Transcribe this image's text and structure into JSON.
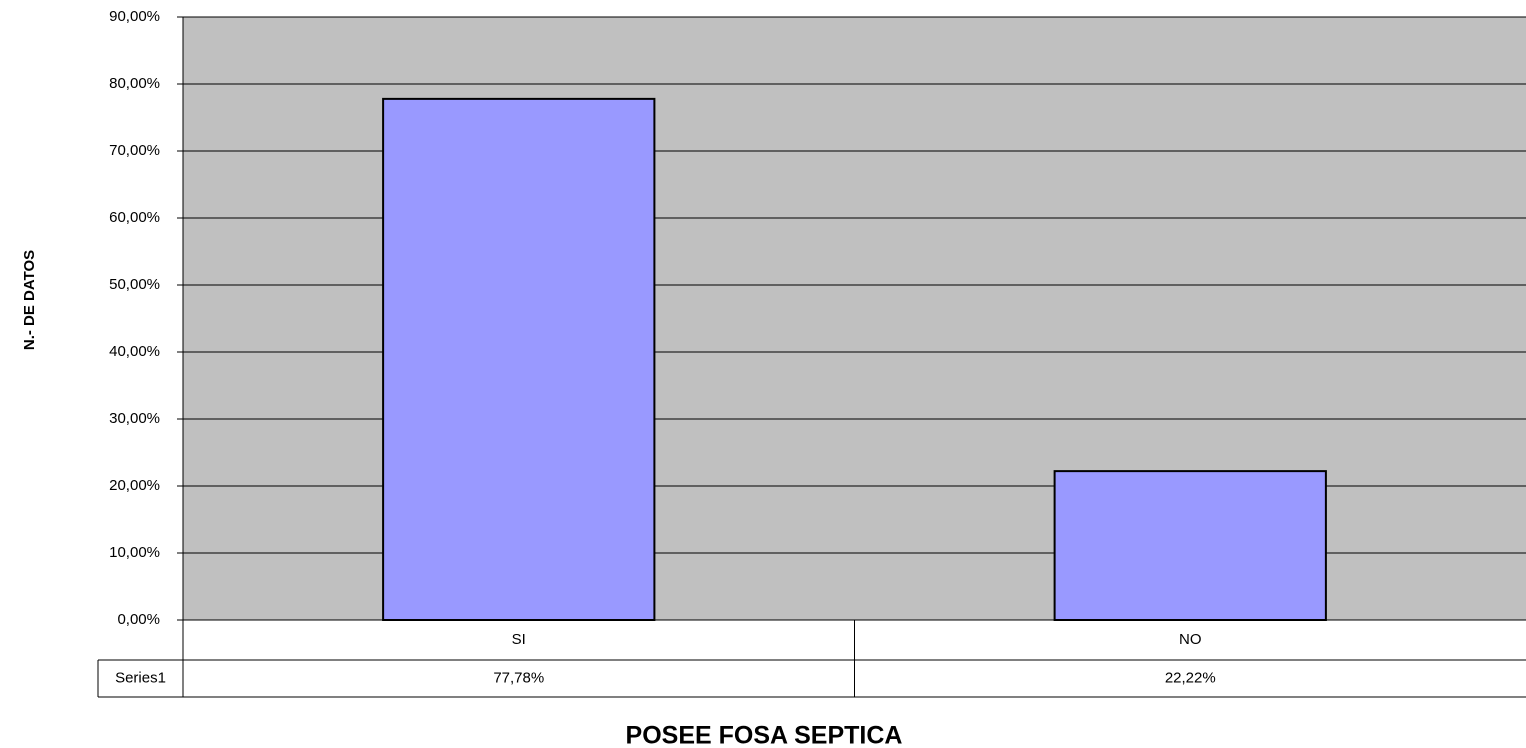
{
  "chart_data": {
    "type": "bar",
    "x_label": "POSEE FOSA SEPTICA",
    "y_label": "N.- DE DATOS",
    "categories": [
      "SI",
      "NO"
    ],
    "series": [
      {
        "name": "Series1",
        "color": "#9999ff",
        "values": [
          77.78,
          22.22
        ],
        "value_labels": [
          "77,78%",
          "22,22%"
        ]
      }
    ],
    "ylim": [
      0,
      90
    ],
    "yticks": [
      {
        "value": 0,
        "label": "0,00%"
      },
      {
        "value": 10,
        "label": "10,00%"
      },
      {
        "value": 20,
        "label": "20,00%"
      },
      {
        "value": 30,
        "label": "30,00%"
      },
      {
        "value": 40,
        "label": "40,00%"
      },
      {
        "value": 50,
        "label": "50,00%"
      },
      {
        "value": 60,
        "label": "60,00%"
      },
      {
        "value": 70,
        "label": "70,00%"
      },
      {
        "value": 80,
        "label": "80,00%"
      },
      {
        "value": 90,
        "label": "90,00%"
      }
    ],
    "grid": true,
    "plot_background": "#c0c0c0",
    "data_table": true
  }
}
